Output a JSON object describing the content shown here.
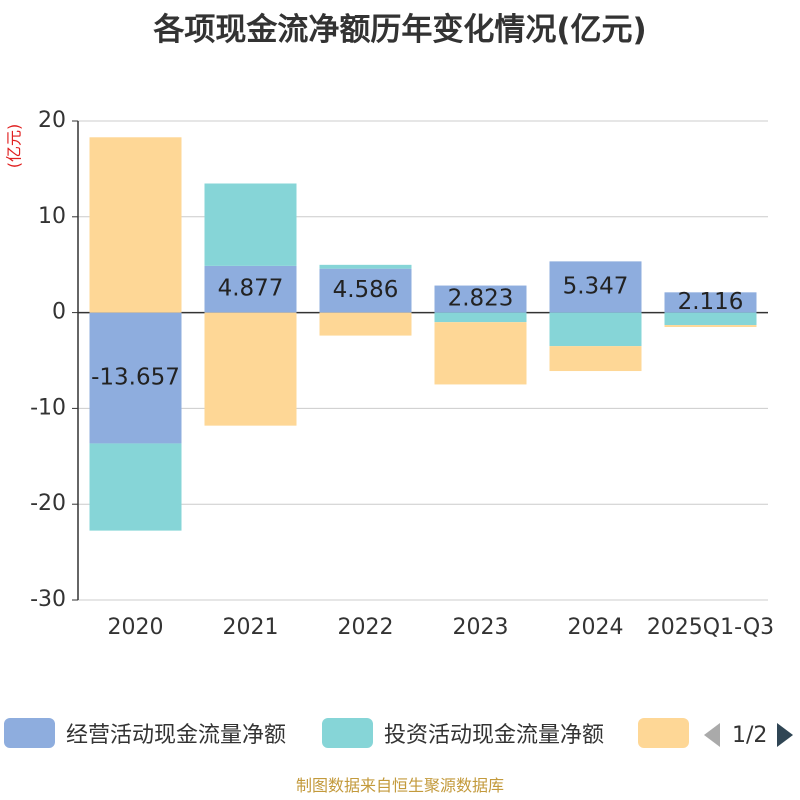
{
  "title": "各项现金流净额历年变化情况(亿元)",
  "footer": "制图数据来自恒生聚源数据库",
  "pager": {
    "text": "1/2",
    "prev_icon": "triangle-left-icon",
    "next_icon": "triangle-right-icon"
  },
  "chart_data": {
    "type": "bar",
    "stacked": true,
    "title": "各项现金流净额历年变化情况(亿元)",
    "ylabel": "(亿元)",
    "xlabel": "",
    "categories": [
      "2020",
      "2021",
      "2022",
      "2023",
      "2024",
      "2025Q1-Q3"
    ],
    "ylim": [
      -30,
      20
    ],
    "yticks": [
      -30,
      -20,
      -10,
      0,
      10,
      20
    ],
    "grid": true,
    "series": [
      {
        "name": "经营活动现金流量净额",
        "color": "#8eadde",
        "values": [
          -13.657,
          4.877,
          4.586,
          2.823,
          5.347,
          2.116
        ],
        "labels": [
          "-13.657",
          "4.877",
          "4.586",
          "2.823",
          "5.347",
          "2.116"
        ]
      },
      {
        "name": "投资活动现金流量净额",
        "color": "#86d5d7",
        "values": [
          -9.1,
          8.6,
          0.4,
          -1.0,
          -3.5,
          -1.3
        ]
      },
      {
        "name": "",
        "color": "#fed796",
        "values": [
          18.3,
          -11.8,
          -2.4,
          -6.5,
          -2.6,
          -0.2
        ]
      }
    ]
  }
}
